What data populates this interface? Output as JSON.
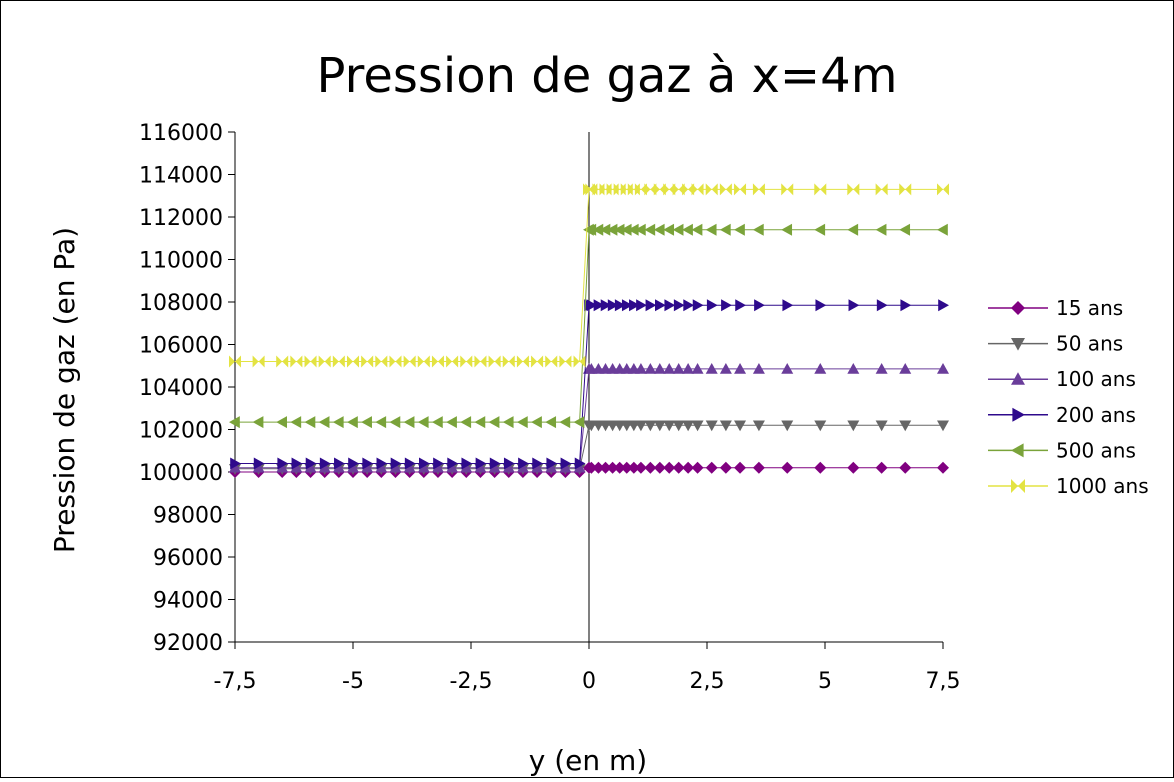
{
  "chart_data": {
    "type": "scatter",
    "title": "Pression de gaz à x=4m",
    "xlabel": "y (en m)",
    "ylabel": "Pression de gaz (en Pa)",
    "xlim": [
      -7.5,
      7.5
    ],
    "ylim": [
      92000,
      116000
    ],
    "x_ticks": [
      -7.5,
      -5,
      -2.5,
      0,
      2.5,
      5,
      7.5
    ],
    "x_tick_labels": [
      "-7,5",
      "-5",
      "-2,5",
      "0",
      "2,5",
      "5",
      "7,5"
    ],
    "y_ticks": [
      92000,
      94000,
      96000,
      98000,
      100000,
      102000,
      104000,
      106000,
      108000,
      110000,
      112000,
      114000,
      116000
    ],
    "y_tick_labels": [
      "92000",
      "94000",
      "96000",
      "98000",
      "100000",
      "102000",
      "104000",
      "106000",
      "108000",
      "110000",
      "112000",
      "114000",
      "116000"
    ],
    "grid": false,
    "legend_position": "right",
    "x": [
      -7.5,
      -7.0,
      -6.5,
      -6.2,
      -5.9,
      -5.6,
      -5.3,
      -5.0,
      -4.7,
      -4.4,
      -4.1,
      -3.8,
      -3.5,
      -3.2,
      -2.9,
      -2.6,
      -2.3,
      -2.0,
      -1.7,
      -1.4,
      -1.1,
      -0.8,
      -0.5,
      -0.2,
      0.0,
      0.05,
      0.2,
      0.35,
      0.5,
      0.65,
      0.8,
      0.95,
      1.1,
      1.3,
      1.5,
      1.7,
      1.9,
      2.1,
      2.3,
      2.6,
      2.9,
      3.2,
      3.6,
      4.2,
      4.9,
      5.6,
      6.2,
      6.7,
      7.5
    ],
    "series": [
      {
        "name": "15 ans",
        "marker": "diamond",
        "color": "#800080",
        "left": 100000,
        "right": 100200
      },
      {
        "name": "50 ans",
        "marker": "triangle-down",
        "color": "#666666",
        "left": 100150,
        "right": 102200
      },
      {
        "name": "100 ans",
        "marker": "triangle-up",
        "color": "#6a3d9a",
        "left": 100200,
        "right": 104850
      },
      {
        "name": "200 ans",
        "marker": "triangle-right",
        "color": "#2e0a8c",
        "left": 100400,
        "right": 107850
      },
      {
        "name": "500 ans",
        "marker": "triangle-left",
        "color": "#7aa33a",
        "left": 102350,
        "right": 111400
      },
      {
        "name": "1000 ans",
        "marker": "bowtie",
        "color": "#e3e342",
        "left": 105200,
        "right": 113300
      }
    ]
  }
}
